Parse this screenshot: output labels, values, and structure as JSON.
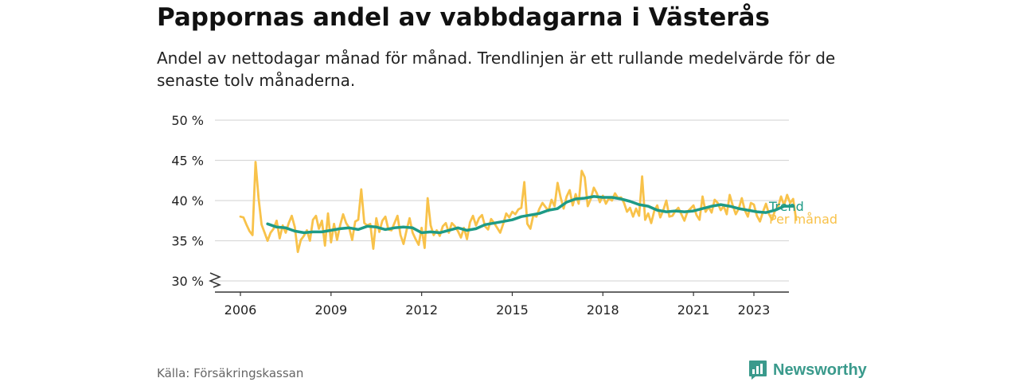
{
  "title": "Pappornas andel av vabbdagarna i Västerås",
  "subtitle": "Andel av nettodagar månad för månad. Trendlinjen är ett rullande medelvärde för de senaste tolv månaderna.",
  "source": "Källa: Försäkringskassan",
  "brand": {
    "name": "Newsworthy",
    "color": "#3a9a8c"
  },
  "chart_data": {
    "type": "line",
    "y_tick_labels": [
      "30 %",
      "35 %",
      "40 %",
      "45 %",
      "50 %"
    ],
    "y_ticks": [
      30,
      35,
      40,
      45,
      50
    ],
    "x_tick_labels": [
      "2006",
      "2009",
      "2012",
      "2015",
      "2018",
      "2021",
      "2023"
    ],
    "x_ticks": [
      2006,
      2009,
      2012,
      2015,
      2018,
      2021,
      2023
    ],
    "ylim": [
      30,
      50
    ],
    "y_axis_broken": true,
    "grid": true,
    "series": [
      {
        "name": "Per månad",
        "color": "#f8c24a",
        "points": [
          [
            2006.0,
            38.0
          ],
          [
            2006.1,
            37.9
          ],
          [
            2006.2,
            37.0
          ],
          [
            2006.3,
            36.2
          ],
          [
            2006.4,
            35.7
          ],
          [
            2006.5,
            44.8
          ],
          [
            2006.6,
            40.3
          ],
          [
            2006.7,
            37.0
          ],
          [
            2006.8,
            36.0
          ],
          [
            2006.9,
            35.0
          ],
          [
            2007.0,
            36.0
          ],
          [
            2007.1,
            36.5
          ],
          [
            2007.2,
            37.5
          ],
          [
            2007.3,
            35.3
          ],
          [
            2007.4,
            36.9
          ],
          [
            2007.5,
            36.0
          ],
          [
            2007.6,
            37.2
          ],
          [
            2007.7,
            38.1
          ],
          [
            2007.8,
            36.7
          ],
          [
            2007.9,
            33.6
          ],
          [
            2008.0,
            35.1
          ],
          [
            2008.1,
            35.6
          ],
          [
            2008.2,
            36.3
          ],
          [
            2008.3,
            35.0
          ],
          [
            2008.4,
            37.6
          ],
          [
            2008.5,
            38.1
          ],
          [
            2008.6,
            36.5
          ],
          [
            2008.7,
            37.5
          ],
          [
            2008.8,
            34.4
          ],
          [
            2008.9,
            38.4
          ],
          [
            2009.0,
            34.8
          ],
          [
            2009.1,
            37.1
          ],
          [
            2009.2,
            35.1
          ],
          [
            2009.3,
            36.9
          ],
          [
            2009.4,
            38.3
          ],
          [
            2009.5,
            37.2
          ],
          [
            2009.6,
            36.6
          ],
          [
            2009.7,
            35.1
          ],
          [
            2009.8,
            37.4
          ],
          [
            2009.9,
            37.6
          ],
          [
            2010.0,
            41.4
          ],
          [
            2010.1,
            37.2
          ],
          [
            2010.2,
            36.9
          ],
          [
            2010.3,
            37.1
          ],
          [
            2010.4,
            34.0
          ],
          [
            2010.5,
            37.8
          ],
          [
            2010.6,
            36.1
          ],
          [
            2010.7,
            37.5
          ],
          [
            2010.8,
            38.0
          ],
          [
            2010.9,
            36.4
          ],
          [
            2011.0,
            36.3
          ],
          [
            2011.1,
            37.2
          ],
          [
            2011.2,
            38.1
          ],
          [
            2011.3,
            35.7
          ],
          [
            2011.4,
            34.6
          ],
          [
            2011.5,
            36.3
          ],
          [
            2011.6,
            37.8
          ],
          [
            2011.7,
            36.0
          ],
          [
            2011.8,
            35.2
          ],
          [
            2011.9,
            34.5
          ],
          [
            2012.0,
            36.6
          ],
          [
            2012.1,
            34.1
          ],
          [
            2012.2,
            40.3
          ],
          [
            2012.3,
            36.9
          ],
          [
            2012.4,
            35.7
          ],
          [
            2012.5,
            36.3
          ],
          [
            2012.6,
            35.6
          ],
          [
            2012.7,
            36.8
          ],
          [
            2012.8,
            37.2
          ],
          [
            2012.9,
            36.0
          ],
          [
            2013.0,
            37.2
          ],
          [
            2013.1,
            36.8
          ],
          [
            2013.2,
            36.2
          ],
          [
            2013.3,
            35.4
          ],
          [
            2013.4,
            36.6
          ],
          [
            2013.5,
            35.2
          ],
          [
            2013.6,
            37.3
          ],
          [
            2013.7,
            38.1
          ],
          [
            2013.8,
            36.9
          ],
          [
            2013.9,
            37.8
          ],
          [
            2014.0,
            38.2
          ],
          [
            2014.1,
            36.8
          ],
          [
            2014.2,
            36.4
          ],
          [
            2014.3,
            37.7
          ],
          [
            2014.4,
            37.2
          ],
          [
            2014.5,
            36.6
          ],
          [
            2014.6,
            36.0
          ],
          [
            2014.7,
            37.1
          ],
          [
            2014.8,
            38.4
          ],
          [
            2014.9,
            37.9
          ],
          [
            2015.0,
            38.6
          ],
          [
            2015.1,
            38.3
          ],
          [
            2015.2,
            38.9
          ],
          [
            2015.3,
            39.1
          ],
          [
            2015.4,
            42.3
          ],
          [
            2015.5,
            37.1
          ],
          [
            2015.6,
            36.5
          ],
          [
            2015.7,
            38.2
          ],
          [
            2015.8,
            38.0
          ],
          [
            2015.9,
            39.0
          ],
          [
            2016.0,
            39.7
          ],
          [
            2016.1,
            39.2
          ],
          [
            2016.2,
            38.7
          ],
          [
            2016.3,
            40.1
          ],
          [
            2016.4,
            39.3
          ],
          [
            2016.5,
            42.2
          ],
          [
            2016.6,
            40.4
          ],
          [
            2016.7,
            39.0
          ],
          [
            2016.8,
            40.5
          ],
          [
            2016.9,
            41.3
          ],
          [
            2017.0,
            39.4
          ],
          [
            2017.1,
            40.8
          ],
          [
            2017.2,
            39.6
          ],
          [
            2017.3,
            43.7
          ],
          [
            2017.4,
            42.9
          ],
          [
            2017.5,
            39.3
          ],
          [
            2017.6,
            40.2
          ],
          [
            2017.7,
            41.6
          ],
          [
            2017.8,
            40.9
          ],
          [
            2017.9,
            39.8
          ],
          [
            2018.0,
            40.6
          ],
          [
            2018.1,
            39.6
          ],
          [
            2018.2,
            40.3
          ],
          [
            2018.3,
            40.0
          ],
          [
            2018.4,
            40.9
          ],
          [
            2018.5,
            40.3
          ],
          [
            2018.6,
            40.4
          ],
          [
            2018.7,
            39.7
          ],
          [
            2018.8,
            38.6
          ],
          [
            2018.9,
            39.1
          ],
          [
            2019.0,
            38.0
          ],
          [
            2019.1,
            39.0
          ],
          [
            2019.2,
            38.1
          ],
          [
            2019.3,
            43.0
          ],
          [
            2019.4,
            37.6
          ],
          [
            2019.5,
            38.4
          ],
          [
            2019.6,
            37.2
          ],
          [
            2019.7,
            38.7
          ],
          [
            2019.8,
            39.4
          ],
          [
            2019.9,
            37.9
          ],
          [
            2020.0,
            38.8
          ],
          [
            2020.1,
            40.0
          ],
          [
            2020.2,
            38.0
          ],
          [
            2020.3,
            38.1
          ],
          [
            2020.4,
            38.7
          ],
          [
            2020.5,
            39.1
          ],
          [
            2020.6,
            38.3
          ],
          [
            2020.7,
            37.5
          ],
          [
            2020.8,
            38.6
          ],
          [
            2020.9,
            39.0
          ],
          [
            2021.0,
            39.4
          ],
          [
            2021.1,
            38.2
          ],
          [
            2021.2,
            37.6
          ],
          [
            2021.3,
            40.5
          ],
          [
            2021.4,
            38.6
          ],
          [
            2021.5,
            39.2
          ],
          [
            2021.6,
            38.5
          ],
          [
            2021.7,
            40.1
          ],
          [
            2021.8,
            39.7
          ],
          [
            2021.9,
            38.8
          ],
          [
            2022.0,
            39.3
          ],
          [
            2022.1,
            38.3
          ],
          [
            2022.2,
            40.7
          ],
          [
            2022.3,
            39.4
          ],
          [
            2022.4,
            38.3
          ],
          [
            2022.5,
            39.0
          ],
          [
            2022.6,
            40.3
          ],
          [
            2022.7,
            38.8
          ],
          [
            2022.8,
            38.0
          ],
          [
            2022.9,
            39.7
          ],
          [
            2023.0,
            39.5
          ],
          [
            2023.1,
            38.1
          ],
          [
            2023.2,
            37.4
          ],
          [
            2023.3,
            38.6
          ],
          [
            2023.4,
            39.6
          ],
          [
            2023.5,
            38.3
          ],
          [
            2023.6,
            37.6
          ],
          [
            2023.7,
            38.8
          ],
          [
            2023.8,
            39.2
          ],
          [
            2023.9,
            40.5
          ],
          [
            2024.0,
            39.4
          ],
          [
            2024.1,
            40.7
          ],
          [
            2024.2,
            39.7
          ],
          [
            2024.3,
            40.2
          ],
          [
            2024.4,
            37.6
          ]
        ]
      },
      {
        "name": "Trend",
        "color": "#1d9a86",
        "points": [
          [
            2006.9,
            37.1
          ],
          [
            2007.2,
            36.7
          ],
          [
            2007.5,
            36.6
          ],
          [
            2007.8,
            36.2
          ],
          [
            2008.1,
            36.0
          ],
          [
            2008.4,
            36.1
          ],
          [
            2008.7,
            36.1
          ],
          [
            2009.0,
            36.3
          ],
          [
            2009.3,
            36.5
          ],
          [
            2009.6,
            36.6
          ],
          [
            2009.9,
            36.4
          ],
          [
            2010.2,
            36.8
          ],
          [
            2010.5,
            36.7
          ],
          [
            2010.8,
            36.4
          ],
          [
            2011.1,
            36.6
          ],
          [
            2011.4,
            36.7
          ],
          [
            2011.7,
            36.6
          ],
          [
            2012.0,
            36.0
          ],
          [
            2012.3,
            36.1
          ],
          [
            2012.6,
            36.0
          ],
          [
            2012.9,
            36.3
          ],
          [
            2013.2,
            36.6
          ],
          [
            2013.5,
            36.3
          ],
          [
            2013.8,
            36.5
          ],
          [
            2014.1,
            37.0
          ],
          [
            2014.4,
            37.2
          ],
          [
            2014.7,
            37.4
          ],
          [
            2015.0,
            37.6
          ],
          [
            2015.3,
            38.0
          ],
          [
            2015.6,
            38.2
          ],
          [
            2015.9,
            38.4
          ],
          [
            2016.2,
            38.8
          ],
          [
            2016.5,
            39.0
          ],
          [
            2016.8,
            39.8
          ],
          [
            2017.1,
            40.2
          ],
          [
            2017.4,
            40.3
          ],
          [
            2017.7,
            40.5
          ],
          [
            2018.0,
            40.4
          ],
          [
            2018.3,
            40.4
          ],
          [
            2018.6,
            40.2
          ],
          [
            2018.9,
            39.9
          ],
          [
            2019.2,
            39.5
          ],
          [
            2019.5,
            39.3
          ],
          [
            2019.8,
            38.8
          ],
          [
            2020.1,
            38.6
          ],
          [
            2020.4,
            38.7
          ],
          [
            2020.7,
            38.6
          ],
          [
            2021.0,
            38.7
          ],
          [
            2021.3,
            39.0
          ],
          [
            2021.6,
            39.3
          ],
          [
            2021.9,
            39.5
          ],
          [
            2022.2,
            39.3
          ],
          [
            2022.5,
            39.0
          ],
          [
            2022.8,
            38.8
          ],
          [
            2023.1,
            38.6
          ],
          [
            2023.4,
            38.5
          ],
          [
            2023.7,
            38.8
          ],
          [
            2024.0,
            39.3
          ],
          [
            2024.3,
            39.3
          ]
        ]
      }
    ]
  }
}
